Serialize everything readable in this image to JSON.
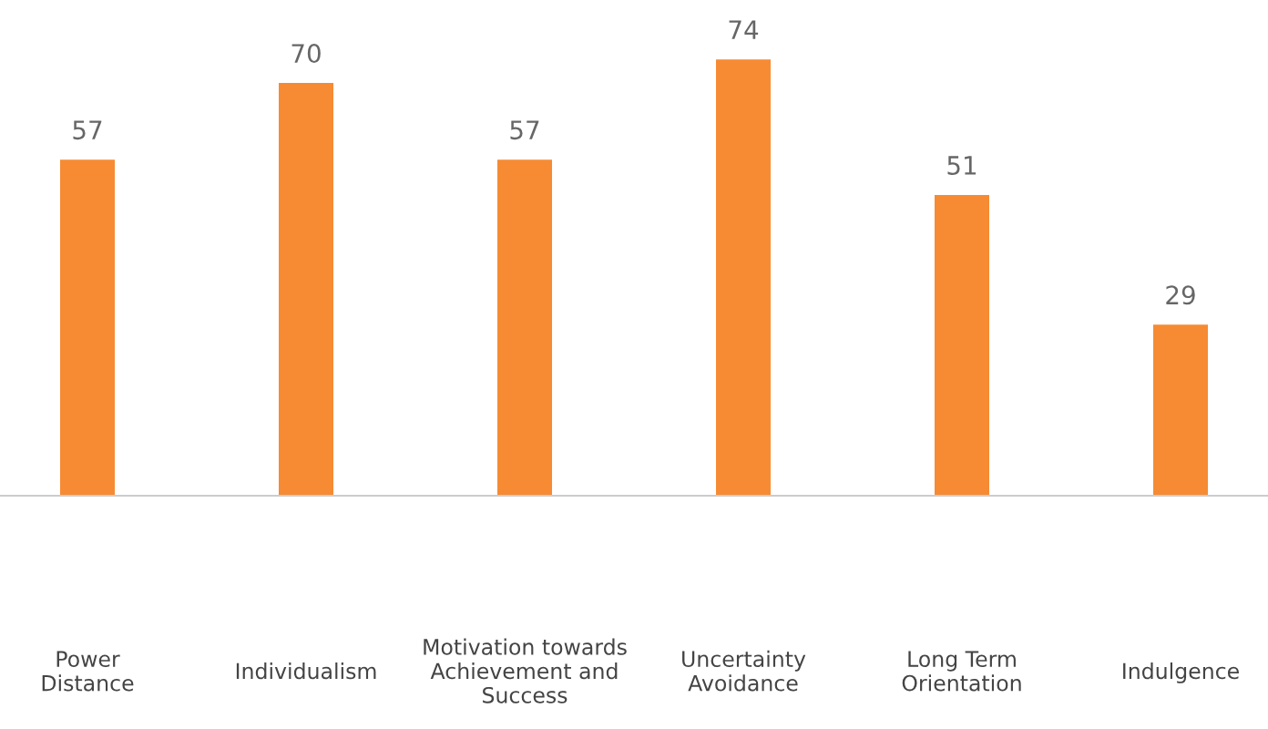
{
  "chart_data": {
    "type": "bar",
    "categories": [
      "Power\nDistance",
      "Individualism",
      "Motivation towards\nAchievement and\nSuccess",
      "Uncertainty\nAvoidance",
      "Long Term\nOrientation",
      "Indulgence"
    ],
    "values": [
      57,
      70,
      57,
      74,
      51,
      29
    ],
    "color": "#f68b33",
    "tick_labels": "x",
    "data_labels": true,
    "grid": false,
    "legend": false
  }
}
